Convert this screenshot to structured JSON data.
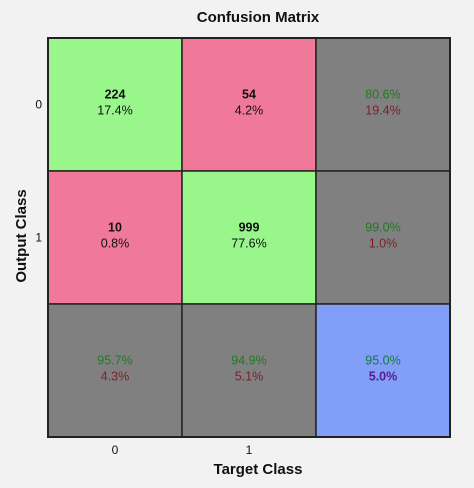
{
  "chart_data": {
    "type": "heatmap",
    "title": "Confusion Matrix",
    "xlabel": "Target Class",
    "ylabel": "Output Class",
    "x_ticks": [
      "0",
      "1"
    ],
    "y_ticks": [
      "0",
      "1"
    ],
    "matrix": [
      [
        {
          "count": "224",
          "percent": "17.4%"
        },
        {
          "count": "54",
          "percent": "4.2%"
        }
      ],
      [
        {
          "count": "10",
          "percent": "0.8%"
        },
        {
          "count": "999",
          "percent": "77.6%"
        }
      ]
    ],
    "row_summary": [
      {
        "correct": "80.6%",
        "error": "19.4%"
      },
      {
        "correct": "99.0%",
        "error": "1.0%"
      }
    ],
    "column_summary": [
      {
        "correct": "95.7%",
        "error": "4.3%"
      },
      {
        "correct": "94.9%",
        "error": "5.1%"
      }
    ],
    "overall": {
      "correct": "95.0%",
      "error": "5.0%"
    },
    "colors": {
      "correct_cell": "#98f68b",
      "incorrect_cell": "#f0799a",
      "summary_cell": "#808080",
      "overall_cell": "#819ef8",
      "correct_text": "#1f7a1f",
      "error_text": "#7a1f2a",
      "overall_correct_text": "#137a3a",
      "overall_error_text": "#5a1a8a",
      "grid_line": "#222222"
    }
  }
}
